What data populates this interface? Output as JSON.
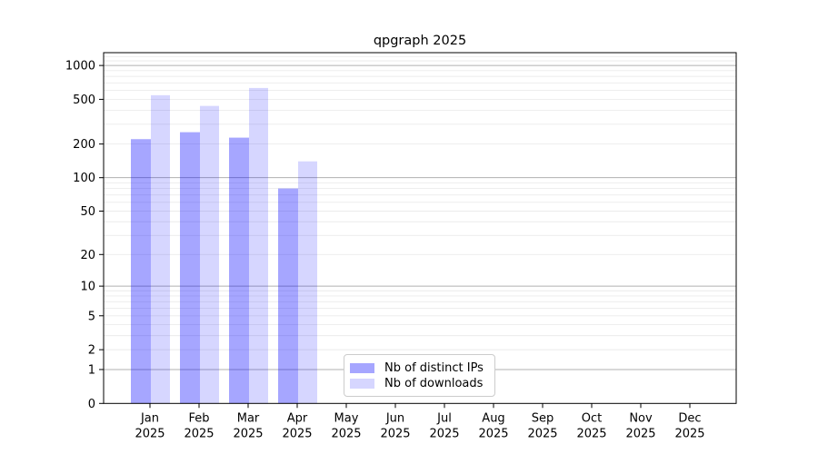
{
  "chart_data": {
    "type": "bar",
    "title": "qpgraph 2025",
    "categories": [
      "Jan",
      "Feb",
      "Mar",
      "Apr",
      "May",
      "Jun",
      "Jul",
      "Aug",
      "Sep",
      "Oct",
      "Nov",
      "Dec"
    ],
    "category_year": "2025",
    "series": [
      {
        "name": "Nb of distinct IPs",
        "color": "#0000ff",
        "opacity": 0.35,
        "values": [
          221,
          255,
          228,
          80,
          null,
          null,
          null,
          null,
          null,
          null,
          null,
          null
        ]
      },
      {
        "name": "Nb of downloads",
        "color": "#0000ff",
        "opacity": 0.16,
        "values": [
          544,
          437,
          631,
          140,
          null,
          null,
          null,
          null,
          null,
          null,
          null,
          null
        ]
      }
    ],
    "yscale": "log1p",
    "yticks": [
      0,
      1,
      2,
      5,
      10,
      20,
      50,
      100,
      200,
      500,
      1000
    ],
    "major_gridlines": [
      1,
      10,
      100,
      1000
    ],
    "minor_gridline_decades": [
      1,
      10,
      100
    ],
    "ylim": [
      0,
      1300
    ],
    "grid": true,
    "legend_position": "lower-center",
    "colors": {
      "axis": "#000000",
      "text": "#000000",
      "major_grid": "#b0b0b0",
      "minor_grid": "#ebebeb",
      "legend_border": "#cccccc",
      "background": "#ffffff"
    }
  }
}
